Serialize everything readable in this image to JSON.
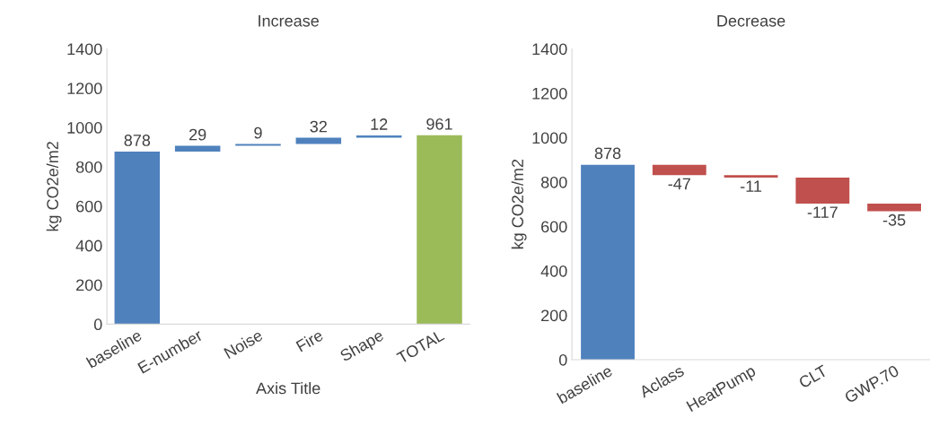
{
  "chart_data": [
    {
      "type": "bar",
      "title": "Increase",
      "xlabel": "Axis Title",
      "ylabel": "kg CO2e/m2",
      "categories": [
        "baseline",
        "E-number",
        "Noise",
        "Fire",
        "Shape",
        "TOTAL"
      ],
      "values": [
        878,
        29,
        9,
        32,
        12,
        961
      ],
      "base": [
        0,
        878,
        907,
        916,
        948,
        0
      ],
      "colors": [
        "#4f81bd",
        "#4f81bd",
        "#4f81bd",
        "#4f81bd",
        "#4f81bd",
        "#9bbb59"
      ],
      "ylim": [
        0,
        1400
      ],
      "yticks": [
        0,
        200,
        400,
        600,
        800,
        1000,
        1200,
        1400
      ],
      "data_labels": true
    },
    {
      "type": "bar",
      "title": "Decrease",
      "ylabel": "kg CO2e/m2",
      "categories": [
        "baseline",
        "Aclass",
        "HeatPump",
        "CLT",
        "GWP.70"
      ],
      "values": [
        878,
        -47,
        -11,
        -117,
        -35
      ],
      "base": [
        0,
        878,
        831,
        820,
        703
      ],
      "colors": [
        "#4f81bd",
        "#c0504d",
        "#c0504d",
        "#c0504d",
        "#c0504d"
      ],
      "ylim": [
        0,
        1400
      ],
      "yticks": [
        0,
        200,
        400,
        600,
        800,
        1000,
        1200,
        1400
      ],
      "data_labels": true
    }
  ]
}
